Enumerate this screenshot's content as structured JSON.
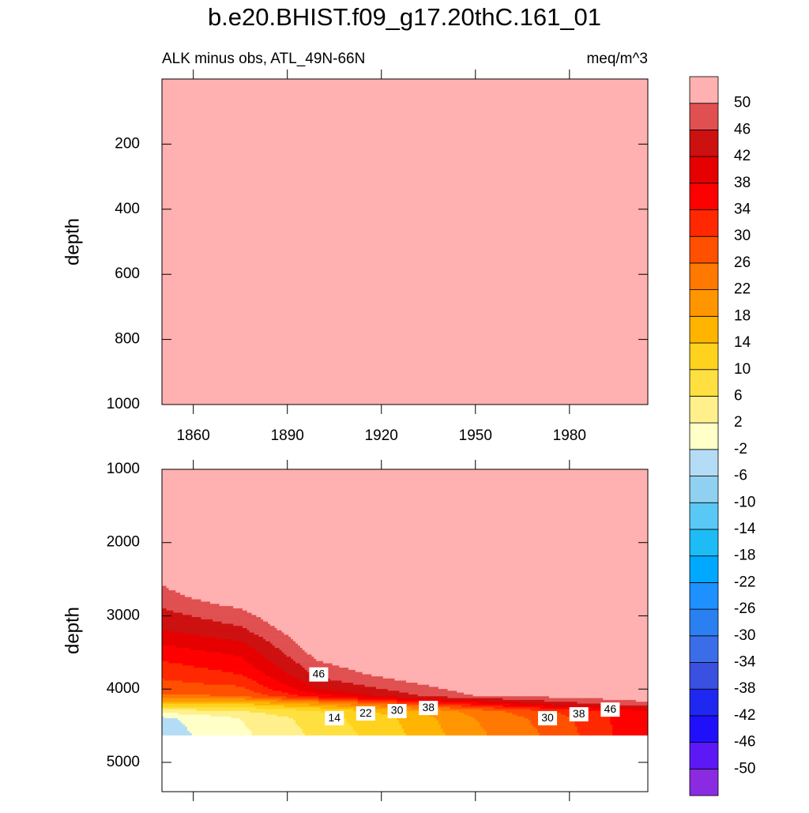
{
  "chart_data": {
    "type": "contour",
    "title": "b.e20.BHIST.f09_g17.20thC.161_01",
    "subtitle_left": "ALK minus obs, ATL_49N-66N",
    "subtitle_right": "meq/m^3",
    "levels": [
      -50,
      -46,
      -42,
      -38,
      -34,
      -30,
      -26,
      -22,
      -18,
      -14,
      -10,
      -6,
      -2,
      2,
      6,
      10,
      14,
      18,
      22,
      26,
      30,
      34,
      38,
      42,
      46,
      50
    ],
    "colors": [
      "#8a2be2",
      "#5c19f5",
      "#2010fa",
      "#1e28f0",
      "#3a50e0",
      "#3c6de8",
      "#2a80f0",
      "#1e90ff",
      "#00a8ff",
      "#1ebcf5",
      "#5ac8f5",
      "#90d0f0",
      "#b4dcf5",
      "#ffffc8",
      "#fff08c",
      "#ffe040",
      "#ffd21e",
      "#ffb400",
      "#ff9600",
      "#ff7800",
      "#ff5000",
      "#ff2800",
      "#ff0000",
      "#e60000",
      "#cd1010",
      "#e05050",
      "#ffb0b0"
    ],
    "panels": [
      {
        "ylabel": "depth",
        "ylim": [
          0,
          1000
        ],
        "yticks": [
          200,
          400,
          600,
          800,
          1000
        ],
        "xlim": [
          1850,
          2005
        ],
        "xticks": [
          1860,
          1890,
          1920,
          1950,
          1980
        ],
        "xtick_labels": true,
        "x": [
          1850,
          1875,
          1900,
          1925,
          1950,
          1975,
          2005
        ],
        "depth": [
          0,
          1000
        ],
        "values": [
          [
            60,
            60,
            60,
            60,
            60,
            60,
            60
          ],
          [
            60,
            60,
            60,
            60,
            60,
            60,
            60
          ]
        ],
        "contour_labels": []
      },
      {
        "ylabel": "depth",
        "ylim": [
          1000,
          5400
        ],
        "yticks": [
          1000,
          2000,
          3000,
          4000,
          5000
        ],
        "xlim": [
          1850,
          2005
        ],
        "xticks": [
          1860,
          1890,
          1920,
          1950,
          1980
        ],
        "xtick_labels": false,
        "x": [
          1850,
          1875,
          1900,
          1925,
          1950,
          1975,
          2005
        ],
        "depth": [
          1000,
          2500,
          2900,
          3200,
          3500,
          3800,
          4000,
          4100,
          4200,
          4300,
          4400,
          4630
        ],
        "values": [
          [
            60,
            60,
            60,
            60,
            60,
            60,
            60
          ],
          [
            51,
            60,
            60,
            60,
            60,
            60,
            60
          ],
          [
            46,
            50,
            58,
            60,
            60,
            60,
            60
          ],
          [
            42,
            45,
            55,
            60,
            60,
            60,
            60
          ],
          [
            36,
            39,
            52,
            56,
            60,
            60,
            60
          ],
          [
            31,
            34,
            47,
            52,
            56,
            60,
            60
          ],
          [
            28,
            29,
            42,
            47,
            52,
            54,
            55
          ],
          [
            25,
            26,
            36,
            44,
            50,
            51,
            53
          ],
          [
            14,
            14,
            20,
            28,
            36,
            44,
            49
          ],
          [
            4,
            6,
            10,
            16,
            24,
            30,
            38
          ],
          [
            -3,
            2,
            8,
            14,
            22,
            28,
            38
          ],
          [
            -4,
            1,
            7,
            13,
            21,
            27,
            38
          ]
        ],
        "contour_labels": [
          {
            "x": 1900,
            "depth": 3800,
            "value": 46
          },
          {
            "x": 1905,
            "depth": 4398,
            "value": 14
          },
          {
            "x": 1915,
            "depth": 4333,
            "value": 22
          },
          {
            "x": 1925,
            "depth": 4300,
            "value": 30
          },
          {
            "x": 1935,
            "depth": 4258,
            "value": 38
          },
          {
            "x": 1973,
            "depth": 4398,
            "value": 30
          },
          {
            "x": 1983,
            "depth": 4344,
            "value": 38
          },
          {
            "x": 1993,
            "depth": 4280,
            "value": 46
          }
        ]
      }
    ]
  }
}
